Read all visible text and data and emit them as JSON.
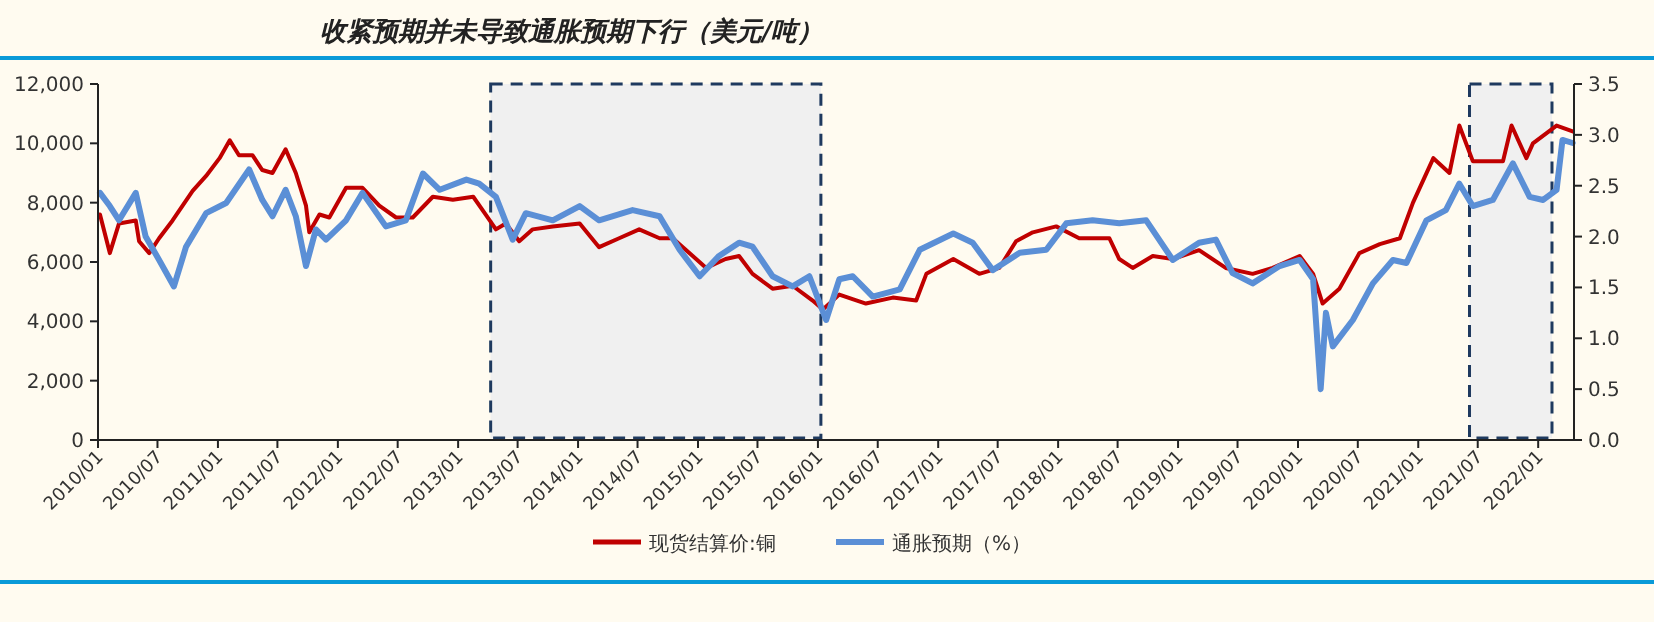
{
  "chart_data": {
    "type": "line",
    "title": "收紧预期并未导致通胀预期下行（美元/吨）",
    "xlim": [
      "2010-01",
      "2022-04-20"
    ],
    "xticks": [
      {
        "value": "2010-01",
        "label": "2010/01"
      },
      {
        "value": "2010-07",
        "label": "2010/07"
      },
      {
        "value": "2011-01",
        "label": "2011/01"
      },
      {
        "value": "2011-07",
        "label": "2011/07"
      },
      {
        "value": "2012-01",
        "label": "2012/01"
      },
      {
        "value": "2012-07",
        "label": "2012/07"
      },
      {
        "value": "2013-01",
        "label": "2013/01"
      },
      {
        "value": "2013-07",
        "label": "2013/07"
      },
      {
        "value": "2014-01",
        "label": "2014/01"
      },
      {
        "value": "2014-07",
        "label": "2014/07"
      },
      {
        "value": "2015-01",
        "label": "2015/01"
      },
      {
        "value": "2015-07",
        "label": "2015/07"
      },
      {
        "value": "2016-01",
        "label": "2016/01"
      },
      {
        "value": "2016-07",
        "label": "2016/07"
      },
      {
        "value": "2017-01",
        "label": "2017/01"
      },
      {
        "value": "2017-07",
        "label": "2017/07"
      },
      {
        "value": "2018-01",
        "label": "2018/01"
      },
      {
        "value": "2018-07",
        "label": "2018/07"
      },
      {
        "value": "2019-01",
        "label": "2019/01"
      },
      {
        "value": "2019-07",
        "label": "2019/07"
      },
      {
        "value": "2020-01",
        "label": "2020/01"
      },
      {
        "value": "2020-07",
        "label": "2020/07"
      },
      {
        "value": "2021-01",
        "label": "2021/01"
      },
      {
        "value": "2021-07",
        "label": "2021/07"
      },
      {
        "value": "2022-01",
        "label": "2022/01"
      }
    ],
    "ylim": [
      0,
      12000
    ],
    "yticks": [
      {
        "value": 0,
        "label": "0"
      },
      {
        "value": 2000,
        "label": "2,000"
      },
      {
        "value": 4000,
        "label": "4,000"
      },
      {
        "value": 6000,
        "label": "6,000"
      },
      {
        "value": 8000,
        "label": "8,000"
      },
      {
        "value": 10000,
        "label": "10,000"
      },
      {
        "value": 12000,
        "label": "12,000"
      }
    ],
    "y2lim": [
      0,
      3.5
    ],
    "y2ticks": [
      {
        "value": 0,
        "label": "0.0"
      },
      {
        "value": 0.5,
        "label": "0.5"
      },
      {
        "value": 1,
        "label": "1.0"
      },
      {
        "value": 1.5,
        "label": "1.5"
      },
      {
        "value": 2,
        "label": "2.0"
      },
      {
        "value": 2.5,
        "label": "2.5"
      },
      {
        "value": 3,
        "label": "3.0"
      },
      {
        "value": 3.5,
        "label": "3.5"
      }
    ],
    "legend": "bottom",
    "grid": false,
    "bands": [
      {
        "axis": "x",
        "from": "2013-04-10",
        "to": "2016-01-10",
        "color": "#f0f0f0"
      },
      {
        "axis": "x",
        "from": "2021-06-06",
        "to": "2022-02-12",
        "color": "#f0f0f0"
      }
    ],
    "series": [
      {
        "name": "现货结算价:铜",
        "color": "#c00000",
        "x": [
          "2010-01-07",
          "2010-02-06",
          "2010-03-06",
          "2010-04-26",
          "2010-05-06",
          "2010-06-06",
          "2010-07-06",
          "2010-08-16",
          "2010-10-16",
          "2010-11-26",
          "2011-01-06",
          "2011-02-06",
          "2011-03-06",
          "2011-04-16",
          "2011-05-16",
          "2011-06-16",
          "2011-07-26",
          "2011-08-26",
          "2011-09-26",
          "2011-10-06",
          "2011-11-06",
          "2011-12-06",
          "2012-01-26",
          "2012-03-16",
          "2012-05-06",
          "2012-06-26",
          "2012-08-16",
          "2012-10-16",
          "2012-12-16",
          "2013-02-16",
          "2013-03-26",
          "2013-04-26",
          "2013-05-26",
          "2013-07-06",
          "2013-08-16",
          "2013-10-16",
          "2014-01-06",
          "2014-03-06",
          "2014-05-06",
          "2014-07-06",
          "2014-09-06",
          "2014-10-16",
          "2014-12-16",
          "2015-01-26",
          "2015-03-26",
          "2015-05-06",
          "2015-06-16",
          "2015-08-16",
          "2015-10-16",
          "2015-12-16",
          "2016-01-16",
          "2016-03-06",
          "2016-05-26",
          "2016-08-16",
          "2016-10-26",
          "2016-11-26",
          "2017-02-16",
          "2017-05-06",
          "2017-07-06",
          "2017-08-26",
          "2017-10-16",
          "2017-12-26",
          "2018-03-06",
          "2018-06-06",
          "2018-07-06",
          "2018-08-16",
          "2018-10-16",
          "2018-12-16",
          "2019-03-06",
          "2019-05-26",
          "2019-08-16",
          "2019-10-16",
          "2020-01-06",
          "2020-02-16",
          "2020-03-16",
          "2020-05-06",
          "2020-07-06",
          "2020-09-06",
          "2020-11-06",
          "2020-12-16",
          "2021-02-16",
          "2021-04-06",
          "2021-05-06",
          "2021-06-16",
          "2021-08-16",
          "2021-09-16",
          "2021-10-12",
          "2021-11-26",
          "2021-12-16",
          "2022-02-26",
          "2022-04-16"
        ],
        "values": [
          7600,
          6300,
          7300,
          7400,
          6700,
          6300,
          6800,
          7400,
          8400,
          8900,
          9500,
          10100,
          9600,
          9600,
          9100,
          9000,
          9800,
          9000,
          7900,
          7000,
          7600,
          7500,
          8500,
          8500,
          7900,
          7500,
          7500,
          8200,
          8100,
          8200,
          7600,
          7100,
          7300,
          6700,
          7100,
          7200,
          7300,
          6500,
          6800,
          7100,
          6800,
          6800,
          6200,
          5800,
          6100,
          6200,
          5600,
          5100,
          5200,
          4700,
          4400,
          4900,
          4600,
          4800,
          4700,
          5600,
          6100,
          5600,
          5800,
          6700,
          7000,
          7200,
          6800,
          6800,
          6100,
          5800,
          6200,
          6100,
          6400,
          5800,
          5600,
          5800,
          6200,
          5600,
          4600,
          5100,
          6300,
          6600,
          6800,
          8000,
          9500,
          9000,
          10600,
          9400,
          9400,
          9400,
          10600,
          9500,
          10000,
          10600,
          10400
        ]
      },
      {
        "name": "通胀预期（%）",
        "color": "#5b8fd6",
        "axis": "y2",
        "x": [
          "2010-01-07",
          "2010-02-06",
          "2010-03-06",
          "2010-04-26",
          "2010-05-26",
          "2010-07-06",
          "2010-08-20",
          "2010-09-26",
          "2010-11-26",
          "2011-01-26",
          "2011-04-06",
          "2011-05-16",
          "2011-06-16",
          "2011-07-26",
          "2011-08-26",
          "2011-09-26",
          "2011-10-26",
          "2011-11-26",
          "2012-01-26",
          "2012-03-16",
          "2012-05-26",
          "2012-07-26",
          "2012-09-16",
          "2012-11-06",
          "2013-01-26",
          "2013-03-06",
          "2013-04-26",
          "2013-06-16",
          "2013-07-26",
          "2013-10-16",
          "2014-01-06",
          "2014-03-06",
          "2014-06-16",
          "2014-09-06",
          "2014-11-06",
          "2015-01-06",
          "2015-03-06",
          "2015-05-06",
          "2015-06-16",
          "2015-08-16",
          "2015-10-16",
          "2015-12-06",
          "2016-01-26",
          "2016-03-06",
          "2016-04-16",
          "2016-06-16",
          "2016-09-06",
          "2016-11-06",
          "2017-02-16",
          "2017-04-16",
          "2017-06-16",
          "2017-09-06",
          "2017-11-26",
          "2018-01-26",
          "2018-04-16",
          "2018-07-06",
          "2018-09-26",
          "2018-12-16",
          "2019-03-06",
          "2019-04-26",
          "2019-06-16",
          "2019-08-16",
          "2019-11-06",
          "2020-01-06",
          "2020-02-16",
          "2020-03-10",
          "2020-03-26",
          "2020-04-16",
          "2020-06-16",
          "2020-08-16",
          "2020-10-16",
          "2020-11-26",
          "2021-01-26",
          "2021-03-26",
          "2021-05-06",
          "2021-06-16",
          "2021-08-16",
          "2021-10-16",
          "2021-12-06",
          "2022-01-16",
          "2022-02-26",
          "2022-03-16",
          "2022-04-16"
        ],
        "values": [
          2.43,
          2.3,
          2.16,
          2.43,
          2.0,
          1.77,
          1.51,
          1.9,
          2.23,
          2.33,
          2.66,
          2.36,
          2.2,
          2.46,
          2.2,
          1.71,
          2.07,
          1.97,
          2.16,
          2.43,
          2.1,
          2.16,
          2.62,
          2.46,
          2.56,
          2.52,
          2.39,
          1.97,
          2.23,
          2.16,
          2.3,
          2.16,
          2.26,
          2.2,
          1.87,
          1.61,
          1.81,
          1.94,
          1.9,
          1.61,
          1.51,
          1.61,
          1.18,
          1.58,
          1.61,
          1.41,
          1.48,
          1.87,
          2.03,
          1.94,
          1.67,
          1.84,
          1.87,
          2.13,
          2.16,
          2.13,
          2.16,
          1.77,
          1.94,
          1.97,
          1.64,
          1.54,
          1.71,
          1.77,
          1.58,
          0.5,
          1.25,
          0.92,
          1.18,
          1.54,
          1.77,
          1.74,
          2.16,
          2.26,
          2.52,
          2.3,
          2.36,
          2.72,
          2.39,
          2.36,
          2.46,
          2.95,
          2.92
        ]
      }
    ]
  }
}
